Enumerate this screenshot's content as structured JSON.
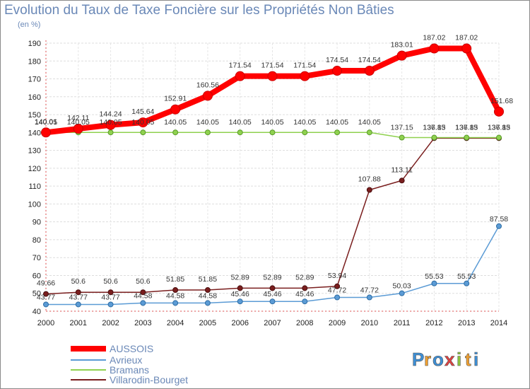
{
  "chart_data": {
    "type": "line",
    "title": "Evolution du Taux de Taxe Foncière sur les Propriétés Non Bâties",
    "ylabel": "(en %)",
    "ylim": [
      40,
      190
    ],
    "yticks": [
      40,
      50,
      60,
      70,
      80,
      90,
      100,
      110,
      120,
      130,
      140,
      150,
      160,
      170,
      180,
      190
    ],
    "x": [
      "2000",
      "2001",
      "2002",
      "2003",
      "2004",
      "2005",
      "2006",
      "2007",
      "2008",
      "2009",
      "2010",
      "2011",
      "2012",
      "2013",
      "2014"
    ],
    "series": [
      {
        "name": "AUSSOIS",
        "color": "#ff0000",
        "values": [
          140.01,
          142.11,
          144.24,
          145.64,
          152.91,
          160.56,
          171.54,
          171.54,
          171.54,
          174.54,
          174.54,
          183.01,
          187.02,
          187.02,
          151.68
        ]
      },
      {
        "name": "Avrieux",
        "color": "#5b9bd5",
        "values": [
          43.77,
          43.77,
          43.77,
          44.58,
          44.58,
          44.58,
          45.46,
          45.46,
          45.46,
          47.72,
          47.72,
          50.03,
          55.53,
          55.53,
          87.58
        ]
      },
      {
        "name": "Bramans",
        "color": "#8fd14f",
        "values": [
          140.05,
          140.05,
          140.05,
          140.05,
          140.05,
          140.05,
          140.05,
          140.05,
          140.05,
          140.05,
          140.05,
          137.15,
          137.15,
          137.15,
          137.15
        ]
      },
      {
        "name": "Villarodin-Bourget",
        "color": "#7a1e1e",
        "values": [
          49.66,
          50.6,
          50.6,
          50.6,
          51.85,
          51.85,
          52.89,
          52.89,
          52.89,
          53.94,
          107.88,
          113.11,
          136.83,
          136.83,
          136.83
        ]
      }
    ],
    "labels": {
      "AUSSOIS": [
        "140.01",
        "142.11",
        "144.24",
        "145.64",
        "152.91",
        "160.56",
        "171.54",
        "171.54",
        "171.54",
        "174.54",
        "174.54",
        "183.01",
        "187.02",
        "187.02",
        "151.68"
      ],
      "Avrieux": [
        "43.77",
        "43.77",
        "43.77",
        "44.58",
        "44.58",
        "44.58",
        "45.46",
        "45.46",
        "45.46",
        "47.72",
        "47.72",
        "50.03",
        "55.53",
        "55.53",
        "87.58"
      ],
      "Bramans": [
        "140.05",
        "140.05",
        "140.05",
        "140.05",
        "140.05",
        "140.05",
        "140.05",
        "140.05",
        "140.05",
        "140.05",
        "140.05",
        "137.15",
        "137.15",
        "137.15",
        "137.15"
      ],
      "Villarodin-Bourget": [
        "49.66",
        "50.6",
        "50.6",
        "50.6",
        "51.85",
        "51.85",
        "52.89",
        "52.89",
        "52.89",
        "53.94",
        "107.88",
        "113.11",
        "136.83",
        "136.83",
        "136.83"
      ]
    },
    "legend": [
      "AUSSOIS",
      "Avrieux",
      "Bramans",
      "Villarodin-Bourget"
    ]
  },
  "brand": {
    "letters": [
      "P",
      "r",
      "o",
      "x",
      "i",
      "t",
      "i"
    ],
    "colors": [
      "#3d8fd6",
      "#f0a030",
      "#3d8fd6",
      "#e04040",
      "#8cc63f",
      "#f0a030",
      "#3d8fd6"
    ]
  }
}
